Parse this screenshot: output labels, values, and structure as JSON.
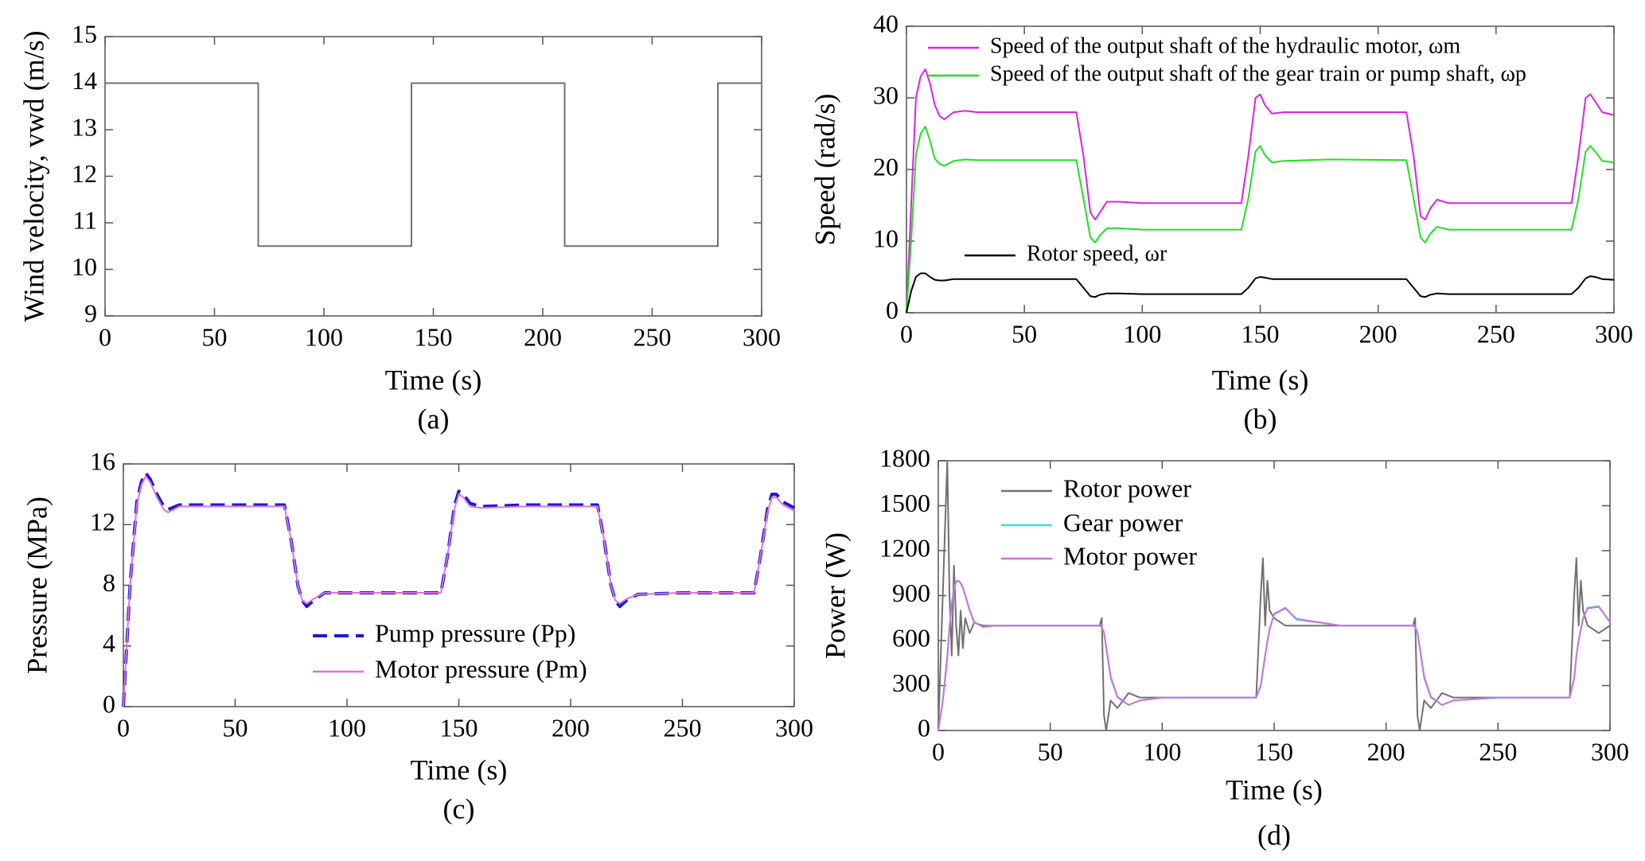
{
  "chart_data": [
    {
      "type": "line",
      "caption": "(a)",
      "xlabel": "Time (s)",
      "ylabel": "Wind velocity, vwd (m/s)",
      "xlim": [
        0,
        300
      ],
      "ylim": [
        9,
        15
      ],
      "xticks": [
        0,
        50,
        100,
        150,
        200,
        250,
        300
      ],
      "yticks": [
        9,
        10,
        11,
        12,
        13,
        14,
        15
      ],
      "x": [
        0,
        70,
        70,
        140,
        140,
        210,
        210,
        280,
        280,
        300
      ],
      "series": [
        {
          "color": "#707070",
          "values": [
            14,
            14,
            10.5,
            10.5,
            14,
            14,
            10.5,
            10.5,
            14,
            14
          ]
        }
      ]
    },
    {
      "type": "line",
      "caption": "(b)",
      "xlabel": "Time (s)",
      "ylabel": "Speed (rad/s)",
      "xlim": [
        0,
        300
      ],
      "ylim": [
        0,
        40
      ],
      "xticks": [
        0,
        50,
        100,
        150,
        200,
        250,
        300
      ],
      "yticks": [
        0,
        10,
        20,
        30,
        40
      ],
      "x": [
        0,
        2,
        4,
        6,
        8,
        10,
        12,
        14,
        16,
        20,
        25,
        30,
        50,
        72,
        75,
        78,
        80,
        82,
        85,
        90,
        100,
        120,
        142,
        145,
        148,
        150,
        152,
        155,
        160,
        180,
        212,
        215,
        218,
        220,
        222,
        225,
        230,
        250,
        282,
        285,
        288,
        290,
        292,
        295,
        300
      ],
      "series": [
        {
          "name": "Speed of the output shaft of the hydraulic motor, ωm",
          "color": "#e020e0",
          "values": [
            0,
            15,
            30,
            33,
            34,
            32,
            29,
            27.5,
            27,
            28,
            28.2,
            28,
            28,
            28,
            22,
            14,
            13,
            14,
            15.5,
            15.5,
            15.3,
            15.3,
            15.3,
            22,
            30,
            30.5,
            29,
            27.8,
            28,
            28,
            28,
            22,
            13.5,
            13,
            14.5,
            15.8,
            15.3,
            15.3,
            15.3,
            22,
            30,
            30.5,
            29.5,
            28,
            27.6
          ]
        },
        {
          "name": "Speed of the output shaft of the gear train or pump shaft, ωp",
          "color": "#20e020",
          "values": [
            0,
            10,
            22,
            25,
            26,
            24,
            21.5,
            20.8,
            20.5,
            21.2,
            21.4,
            21.3,
            21.3,
            21.3,
            16,
            10.5,
            9.8,
            10.8,
            11.8,
            11.8,
            11.6,
            11.6,
            11.6,
            16,
            22.5,
            23.3,
            22,
            21,
            21.2,
            21.4,
            21.3,
            16,
            10.5,
            9.8,
            11,
            12,
            11.6,
            11.6,
            11.6,
            16,
            22.5,
            23.3,
            22.5,
            21.2,
            21
          ]
        },
        {
          "name": "Rotor speed, ωr",
          "color": "#000000",
          "values": [
            0,
            3,
            5,
            5.5,
            5.5,
            5,
            4.6,
            4.5,
            4.5,
            4.7,
            4.7,
            4.7,
            4.7,
            4.7,
            3.5,
            2.3,
            2.2,
            2.5,
            2.7,
            2.7,
            2.6,
            2.6,
            2.6,
            3.5,
            4.8,
            5,
            4.9,
            4.7,
            4.7,
            4.7,
            4.7,
            3.5,
            2.3,
            2.2,
            2.5,
            2.7,
            2.6,
            2.6,
            2.6,
            3.5,
            4.8,
            5.1,
            5,
            4.7,
            4.6
          ]
        }
      ]
    },
    {
      "type": "line",
      "caption": "(c)",
      "xlabel": "Time (s)",
      "ylabel": "Pressure (MPa)",
      "xlim": [
        0,
        300
      ],
      "ylim": [
        0,
        16
      ],
      "xticks": [
        0,
        50,
        100,
        150,
        200,
        250,
        300
      ],
      "yticks": [
        0,
        4,
        8,
        12,
        16
      ],
      "x": [
        0,
        3,
        6,
        8,
        10,
        12,
        15,
        18,
        20,
        25,
        30,
        72,
        75,
        78,
        80,
        82,
        85,
        90,
        100,
        142,
        145,
        148,
        150,
        152,
        155,
        160,
        180,
        212,
        215,
        218,
        220,
        222,
        225,
        230,
        250,
        282,
        285,
        288,
        290,
        292,
        295,
        300
      ],
      "series": [
        {
          "name": "Pump pressure (Pp)",
          "color": "#1a1ad0",
          "linestyle": "dashed",
          "values": [
            0,
            8,
            13.5,
            14.8,
            15.4,
            15,
            14,
            13.2,
            13,
            13.3,
            13.3,
            13.3,
            11,
            8,
            7,
            6.6,
            7,
            7.5,
            7.5,
            7.5,
            10,
            13.2,
            14.2,
            14,
            13.4,
            13.2,
            13.3,
            13.3,
            11,
            8,
            7,
            6.6,
            7,
            7.4,
            7.5,
            7.5,
            10,
            13,
            14,
            14,
            13.5,
            13.1
          ]
        },
        {
          "name": "Motor pressure (Pm)",
          "color": "#e070e0",
          "linestyle": "solid",
          "values": [
            0,
            8,
            13.3,
            14.6,
            15.2,
            14.8,
            13.8,
            13,
            12.8,
            13.2,
            13.2,
            13.2,
            11,
            8,
            7,
            6.8,
            7.1,
            7.5,
            7.5,
            7.5,
            10,
            13,
            14,
            13.8,
            13.2,
            13.1,
            13.2,
            13.2,
            11,
            8,
            7,
            6.8,
            7.1,
            7.4,
            7.5,
            7.5,
            10,
            12.8,
            13.8,
            13.8,
            13.3,
            12.9
          ]
        }
      ]
    },
    {
      "type": "line",
      "caption": "(d)",
      "xlabel": "Time (s)",
      "ylabel": "Power (W)",
      "xlim": [
        0,
        300
      ],
      "ylim": [
        0,
        1800
      ],
      "xticks": [
        0,
        50,
        100,
        150,
        200,
        250,
        300
      ],
      "yticks": [
        0,
        300,
        600,
        900,
        1200,
        1500,
        1800
      ],
      "x": [
        0,
        2,
        4,
        5,
        6,
        7,
        8,
        9,
        10,
        11,
        12,
        14,
        16,
        20,
        25,
        30,
        72,
        73,
        74,
        75,
        77,
        80,
        85,
        90,
        100,
        142,
        144,
        145,
        146,
        147,
        148,
        150,
        155,
        160,
        180,
        212,
        213,
        214,
        215,
        217,
        220,
        225,
        230,
        250,
        282,
        284,
        285,
        286,
        287,
        288,
        290,
        295,
        300
      ],
      "series": [
        {
          "name": "Rotor power",
          "color": "#707070",
          "values": [
            0,
            900,
            1800,
            900,
            500,
            1100,
            700,
            500,
            800,
            550,
            750,
            650,
            720,
            700,
            700,
            700,
            700,
            750,
            100,
            0,
            200,
            150,
            250,
            220,
            220,
            220,
            900,
            1150,
            700,
            1000,
            800,
            750,
            700,
            700,
            700,
            700,
            750,
            100,
            0,
            200,
            150,
            250,
            220,
            220,
            220,
            900,
            1150,
            700,
            1000,
            800,
            700,
            650,
            700
          ]
        },
        {
          "name": "Gear power",
          "color": "#40e0d0",
          "values": [
            0,
            200,
            500,
            700,
            850,
            950,
            1000,
            1000,
            980,
            950,
            900,
            800,
            720,
            690,
            700,
            700,
            700,
            690,
            650,
            550,
            350,
            220,
            170,
            200,
            220,
            220,
            300,
            400,
            500,
            600,
            680,
            780,
            820,
            740,
            700,
            700,
            690,
            650,
            550,
            350,
            220,
            170,
            200,
            220,
            220,
            350,
            500,
            600,
            680,
            750,
            820,
            830,
            720
          ]
        },
        {
          "name": "Motor power",
          "color": "#d070e0",
          "values": [
            0,
            190,
            480,
            690,
            840,
            940,
            990,
            1000,
            985,
            955,
            905,
            805,
            725,
            690,
            700,
            700,
            700,
            690,
            655,
            560,
            360,
            225,
            170,
            200,
            220,
            220,
            295,
            395,
            495,
            595,
            675,
            775,
            815,
            745,
            700,
            700,
            690,
            655,
            560,
            360,
            225,
            170,
            200,
            220,
            220,
            345,
            495,
            595,
            675,
            745,
            815,
            825,
            725
          ]
        }
      ]
    }
  ]
}
